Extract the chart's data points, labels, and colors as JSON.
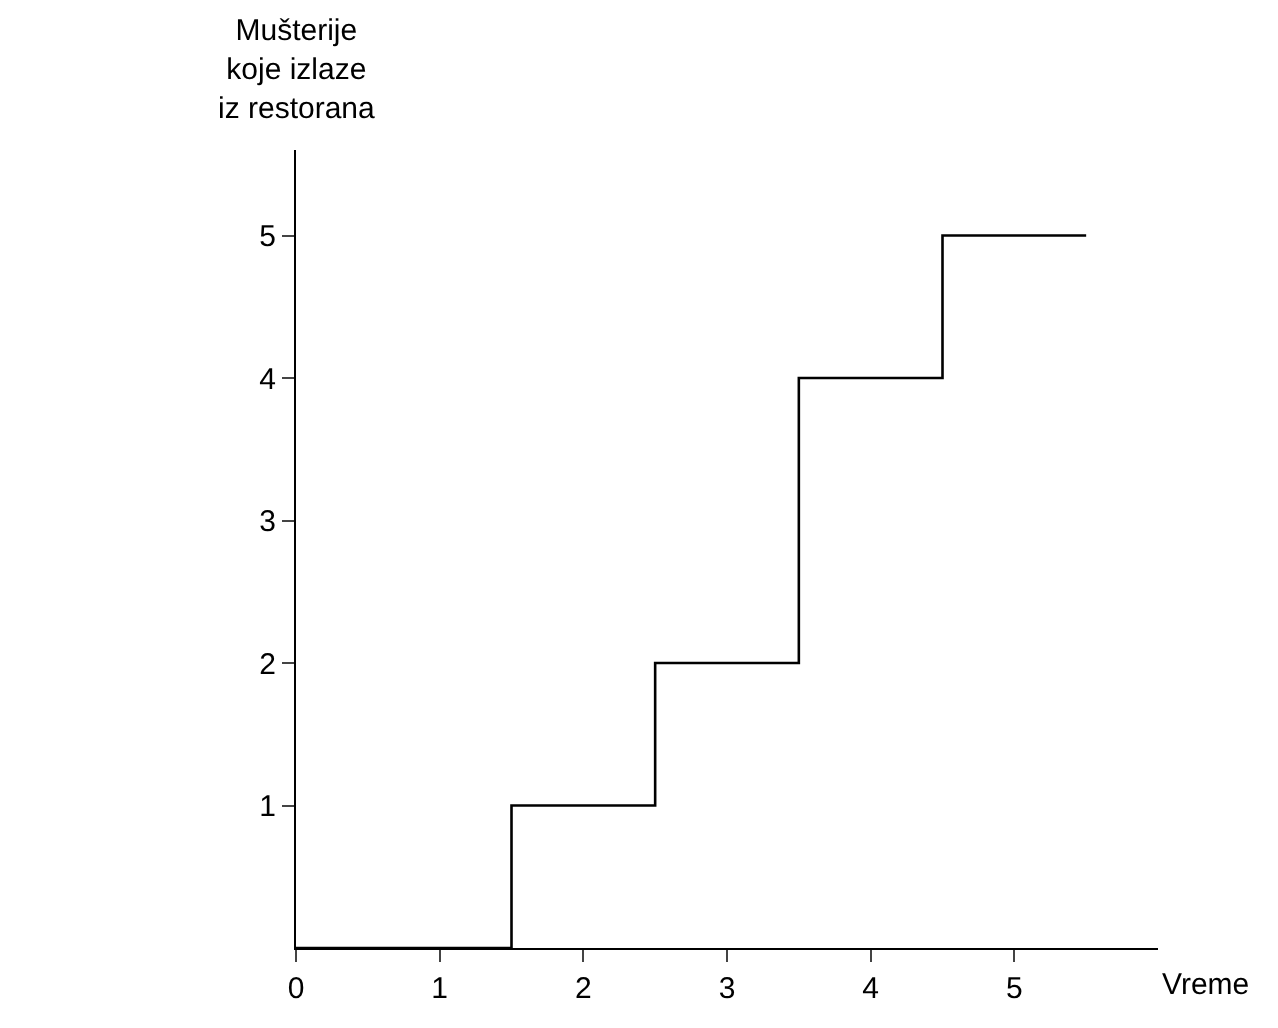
{
  "chart_data": {
    "type": "step",
    "xlabel": "Vreme",
    "ylabel": "Mušterije\nkoje izlaze\niz restorana",
    "x": [
      0,
      1.5,
      2.5,
      3.5,
      4.5,
      5.5
    ],
    "series": [
      {
        "color": "#000000",
        "values": [
          0,
          1,
          2,
          4,
          5,
          5
        ]
      }
    ],
    "xlim": [
      0,
      6
    ],
    "xticks": [
      0,
      1,
      2,
      3,
      4,
      5
    ],
    "ylim": [
      0,
      5.6
    ],
    "yticks": [
      1,
      2,
      3,
      4,
      5
    ],
    "marker": "none",
    "line_style": "solid"
  }
}
